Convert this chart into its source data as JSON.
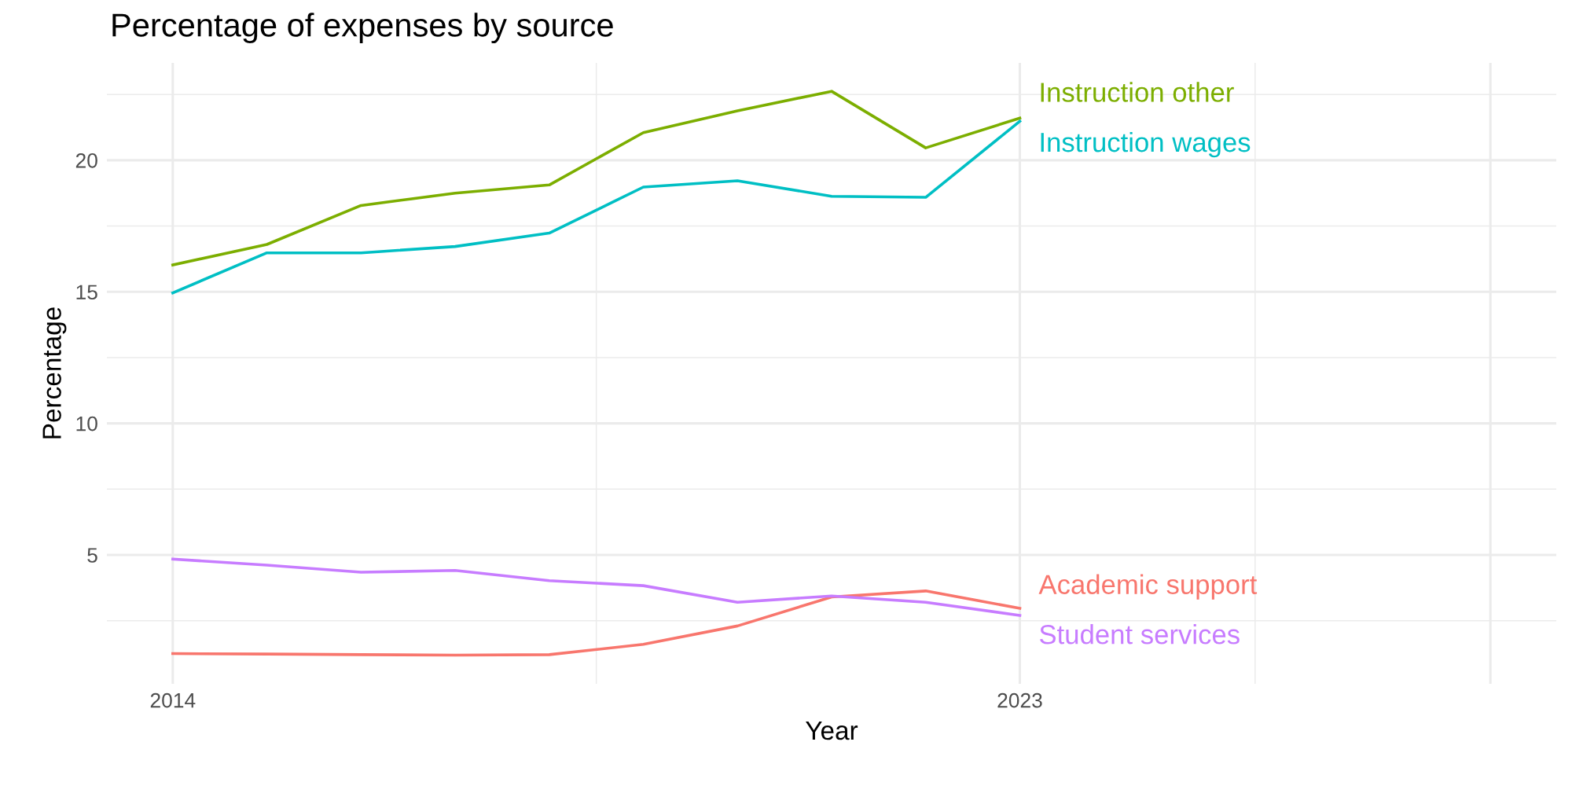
{
  "chart_data": {
    "type": "line",
    "title": "Percentage of expenses by source",
    "xlabel": "Year",
    "ylabel": "Percentage",
    "x": [
      2014,
      2015,
      2016,
      2017,
      2018,
      2019,
      2020,
      2021,
      2022,
      2023
    ],
    "series": [
      {
        "name": "Academic support",
        "color": "#f8766d",
        "values": [
          1.25,
          1.23,
          1.21,
          1.19,
          1.21,
          1.6,
          2.3,
          3.4,
          3.63,
          2.97
        ]
      },
      {
        "name": "Instruction other",
        "color": "#7cae00",
        "values": [
          16.02,
          16.8,
          18.28,
          18.75,
          19.06,
          21.05,
          21.88,
          22.62,
          20.47,
          21.6
        ]
      },
      {
        "name": "Instruction wages",
        "color": "#00bfc4",
        "values": [
          14.96,
          16.48,
          16.48,
          16.72,
          17.23,
          18.98,
          19.22,
          18.63,
          18.59,
          21.48
        ]
      },
      {
        "name": "Student services",
        "color": "#c77cff",
        "values": [
          4.84,
          4.61,
          4.34,
          4.41,
          4.02,
          3.83,
          3.2,
          3.44,
          3.2,
          2.7
        ]
      }
    ],
    "xlim": [
      2013.3,
      2028.7
    ],
    "xticks": [
      2014,
      2023,
      {
        "value": 2028,
        "label": null
      }
    ],
    "ylim": [
      0.1,
      23.7
    ],
    "yticks": [
      5,
      10,
      15,
      20
    ],
    "grid": true,
    "legend": false,
    "marker": "none",
    "line_style": "solid"
  }
}
